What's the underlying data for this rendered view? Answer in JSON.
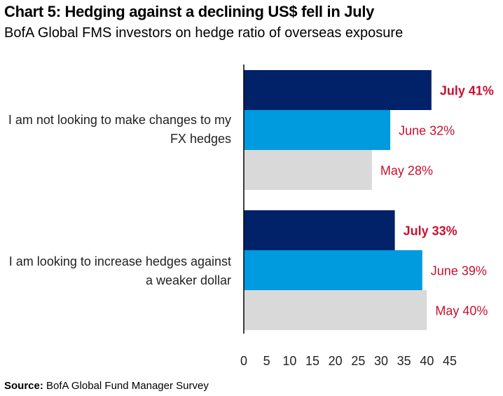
{
  "chart_data": {
    "type": "bar",
    "orientation": "horizontal",
    "title": "Chart 5: Hedging against a declining US$ fell in July",
    "subtitle": "BofA Global FMS investors on hedge ratio of overseas exposure",
    "categories": [
      "I am not looking to make changes to my FX hedges",
      "I am looking to increase hedges against a weaker dollar"
    ],
    "series": [
      {
        "name": "July",
        "color": "#012169",
        "values": [
          41,
          33
        ],
        "labels": [
          "July 41%",
          "July 33%"
        ],
        "bold": true
      },
      {
        "name": "June",
        "color": "#009ADE",
        "values": [
          32,
          39
        ],
        "labels": [
          "June 32%",
          "June 39%"
        ],
        "bold": false
      },
      {
        "name": "May",
        "color": "#D9D9D9",
        "values": [
          28,
          40
        ],
        "labels": [
          "May 28%",
          "May 40%"
        ],
        "bold": false
      }
    ],
    "xlim": [
      0,
      45
    ],
    "xticks": [
      "0",
      "5",
      "10",
      "15",
      "20",
      "25",
      "30",
      "35",
      "40",
      "45"
    ],
    "label_color": "#C8102E",
    "grid": false
  },
  "source_label": "Source:",
  "source_text": " BofA Global Fund Manager Survey"
}
